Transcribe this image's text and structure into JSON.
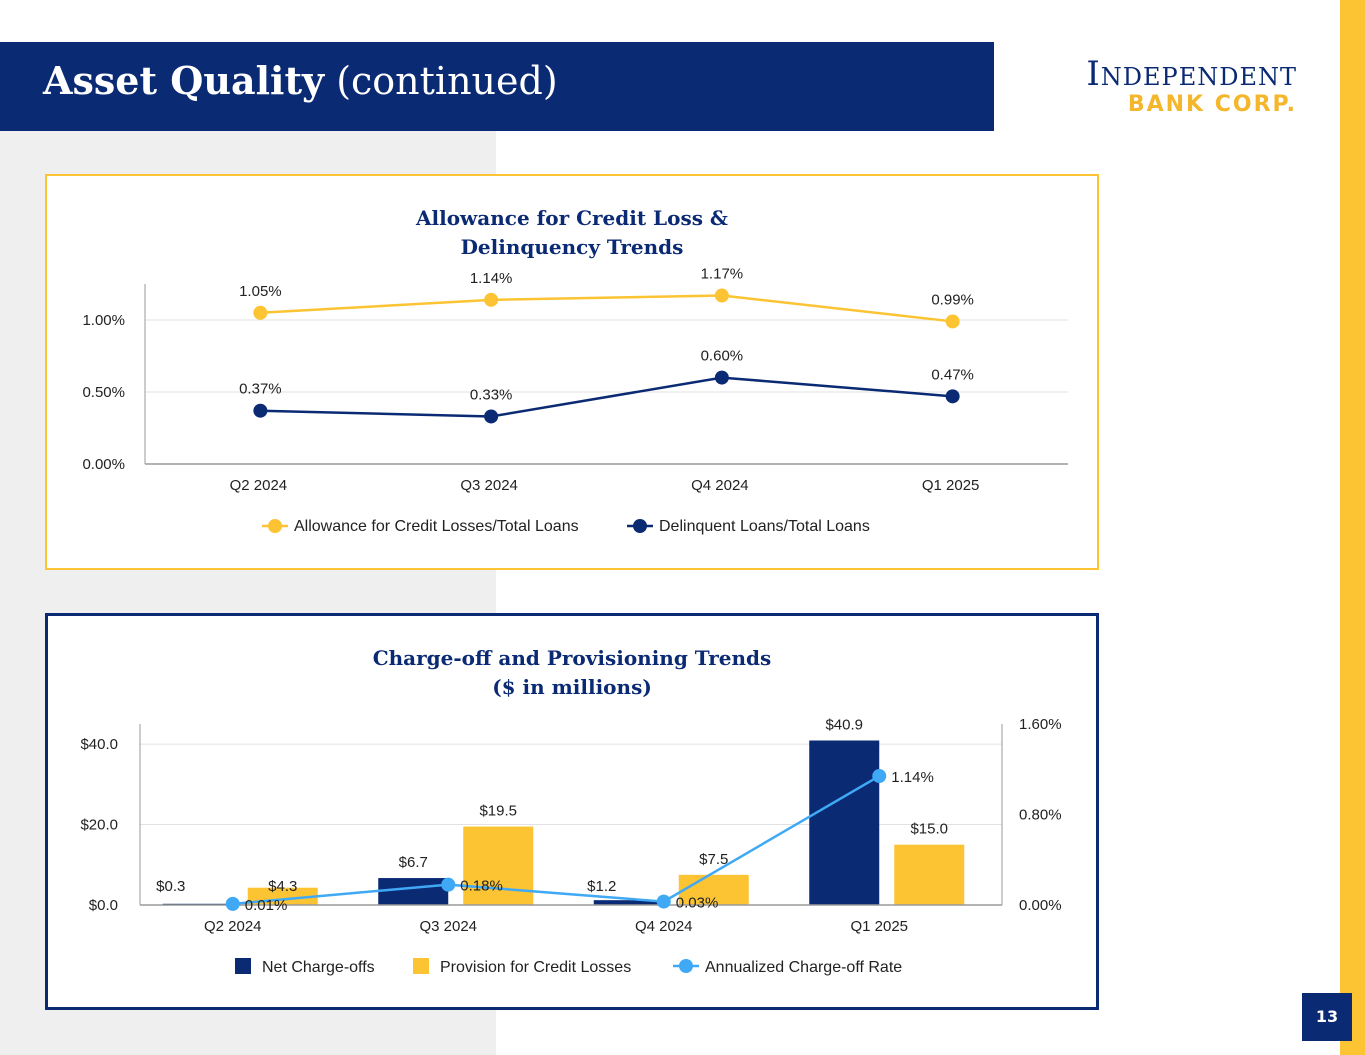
{
  "header": {
    "title_bold": "Asset Quality",
    "title_rest": "(continued)"
  },
  "logo": {
    "line1": "Independent",
    "line2": "BANK CORP."
  },
  "page_number": "13",
  "colors": {
    "navy": "#0b2a74",
    "gold": "#fcc433",
    "light_blue": "#3fa9f5"
  },
  "chart_data": [
    {
      "type": "line",
      "title_lines": [
        "Allowance for Credit Loss &",
        "Delinquency Trends"
      ],
      "categories": [
        "Q2 2024",
        "Q3 2024",
        "Q4 2024",
        "Q1 2025"
      ],
      "ylim": [
        0,
        1.25
      ],
      "yticks": [
        0,
        0.5,
        1.0
      ],
      "ytick_labels": [
        "0.00%",
        "0.50%",
        "1.00%"
      ],
      "grid": true,
      "legend_position": "bottom",
      "series": [
        {
          "name": "Allowance for Credit Losses/Total Loans",
          "values": [
            1.05,
            1.14,
            1.17,
            0.99
          ],
          "labels": [
            "1.05%",
            "1.14%",
            "1.17%",
            "0.99%"
          ],
          "color": "#fcc433"
        },
        {
          "name": "Delinquent Loans/Total Loans",
          "values": [
            0.37,
            0.33,
            0.6,
            0.47
          ],
          "labels": [
            "0.37%",
            "0.33%",
            "0.60%",
            "0.47%"
          ],
          "color": "#0b2a74"
        }
      ]
    },
    {
      "type": "bar",
      "title_lines": [
        "Charge-off and Provisioning Trends",
        "($ in millions)"
      ],
      "categories": [
        "Q2 2024",
        "Q3 2024",
        "Q4 2024",
        "Q1 2025"
      ],
      "ylim": [
        0,
        45
      ],
      "yticks": [
        0,
        20,
        40
      ],
      "ytick_labels": [
        "$0.0",
        "$20.0",
        "$40.0"
      ],
      "y2lim": [
        0,
        1.6
      ],
      "y2ticks": [
        0,
        0.8,
        1.6
      ],
      "y2tick_labels": [
        "0.00%",
        "0.80%",
        "1.60%"
      ],
      "grid": true,
      "legend_position": "bottom",
      "series": [
        {
          "name": "Net Charge-offs",
          "kind": "bar",
          "values": [
            0.3,
            6.7,
            1.2,
            40.9
          ],
          "labels": [
            "$0.3",
            "$6.7",
            "$1.2",
            "$40.9"
          ],
          "color": "#0b2a74"
        },
        {
          "name": "Provision for Credit Losses",
          "kind": "bar",
          "values": [
            4.3,
            19.5,
            7.5,
            15.0
          ],
          "labels": [
            "$4.3",
            "$19.5",
            "$7.5",
            "$15.0"
          ],
          "color": "#fcc433"
        },
        {
          "name": "Annualized Charge-off Rate",
          "kind": "line",
          "axis": "secondary",
          "values": [
            0.01,
            0.18,
            0.03,
            1.14
          ],
          "labels": [
            "0.01%",
            "0.18%",
            "0.03%",
            "1.14%"
          ],
          "color": "#3fa9f5"
        }
      ]
    }
  ]
}
